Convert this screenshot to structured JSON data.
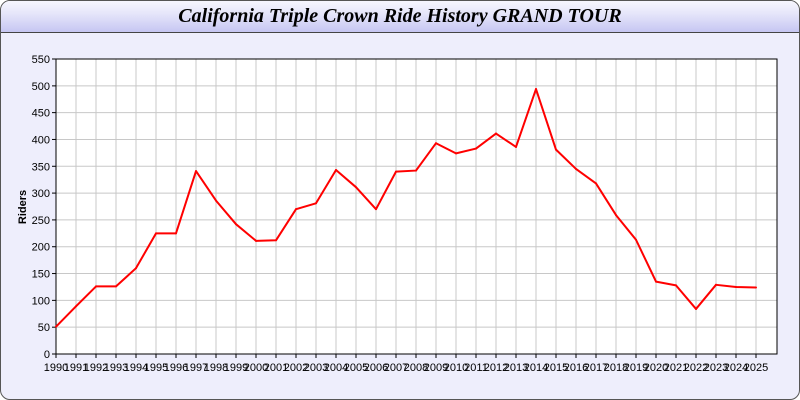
{
  "chart_data": {
    "type": "line",
    "title": "California Triple Crown Ride History GRAND TOUR",
    "xlabel": "",
    "ylabel": "Riders",
    "ylim": [
      0,
      550
    ],
    "yticks": [
      0,
      50,
      100,
      150,
      200,
      250,
      300,
      350,
      400,
      450,
      500,
      550
    ],
    "grid": true,
    "x": [
      "1990",
      "1991",
      "1992",
      "1993",
      "1994",
      "1995",
      "1996",
      "1997",
      "1998",
      "1999",
      "2000",
      "2001",
      "2002",
      "2003",
      "2004",
      "2005",
      "2006",
      "2007",
      "2008",
      "2009",
      "2010",
      "2011",
      "2012",
      "2013",
      "2014",
      "2015",
      "2016",
      "2017",
      "2018",
      "2019",
      "2020",
      "2021",
      "2022",
      "2023",
      "2024",
      "2025"
    ],
    "series": [
      {
        "color": "#ff0000",
        "values": [
          51,
          89,
          126,
          126,
          160,
          225,
          225,
          341,
          286,
          242,
          211,
          212,
          270,
          281,
          343,
          311,
          270,
          340,
          342,
          393,
          374,
          383,
          411,
          386,
          494,
          381,
          345,
          318,
          259,
          213,
          135,
          128,
          84,
          129,
          125,
          124
        ]
      }
    ]
  }
}
